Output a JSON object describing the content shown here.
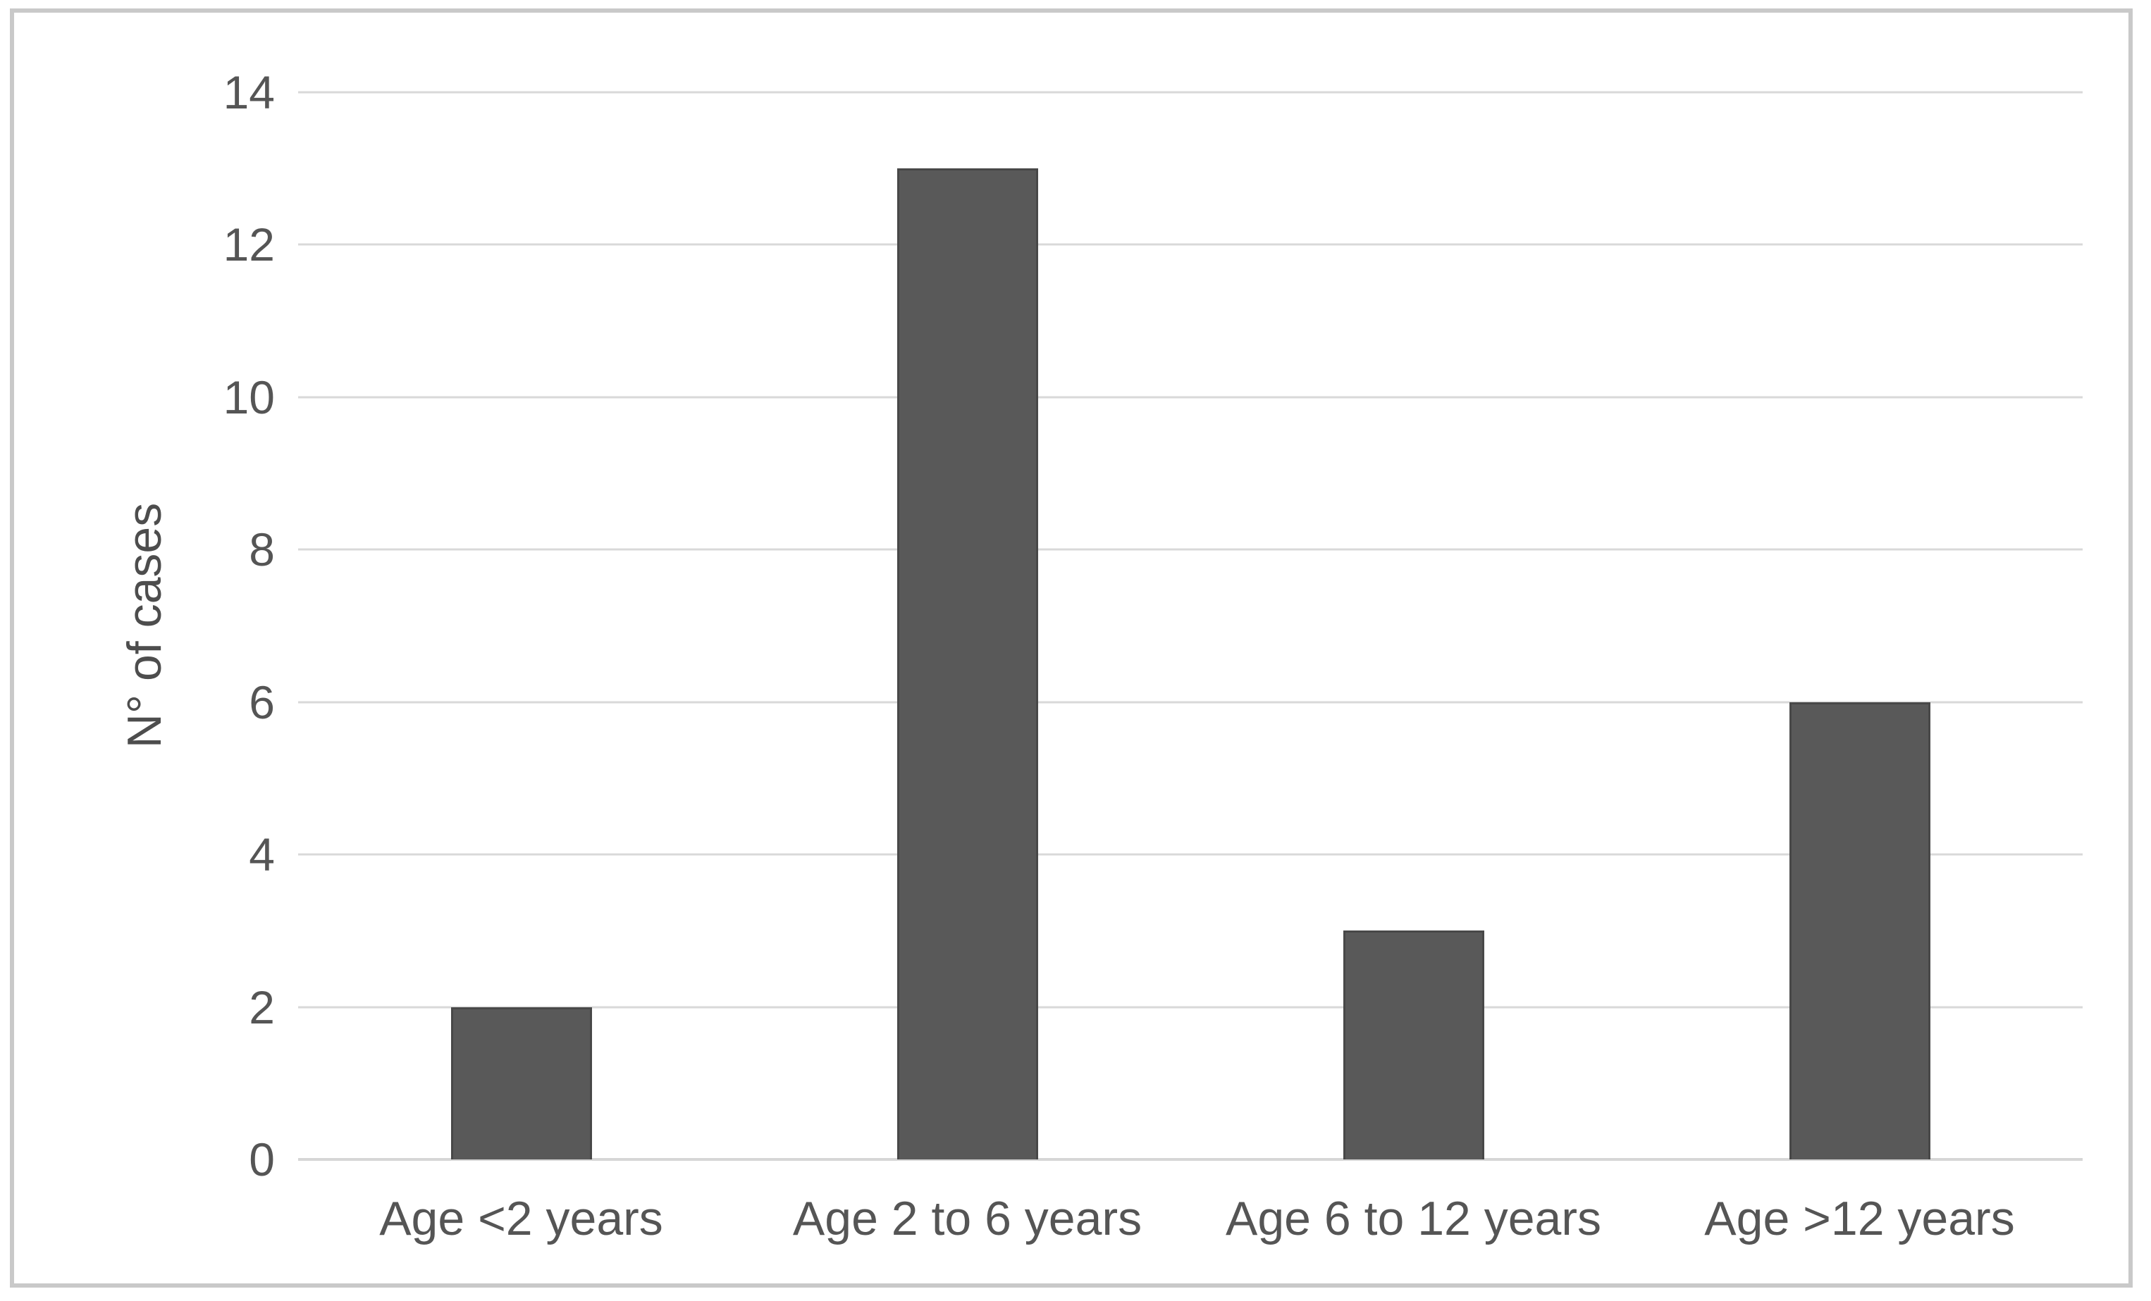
{
  "chart_data": {
    "type": "bar",
    "categories": [
      "Age <2 years",
      "Age 2 to 6 years",
      "Age 6 to 12 years",
      "Age >12 years"
    ],
    "values": [
      2,
      13,
      3,
      6
    ],
    "title": "",
    "xlabel": "",
    "ylabel": "N° of cases",
    "ylim": [
      0,
      14
    ],
    "yticks": [
      0,
      2,
      4,
      6,
      8,
      10,
      12,
      14
    ],
    "grid": "horizontal",
    "legend_position": "none",
    "colors": {
      "bar_fill": "#595959",
      "bar_border": "#484848",
      "gridline": "#d9d9d9",
      "axis_line": "#d6d6d6",
      "tick_text": "#555555",
      "axis_title_text": "#4d4d4d",
      "figure_border": "#c9c9c9",
      "background": "#ffffff"
    }
  }
}
